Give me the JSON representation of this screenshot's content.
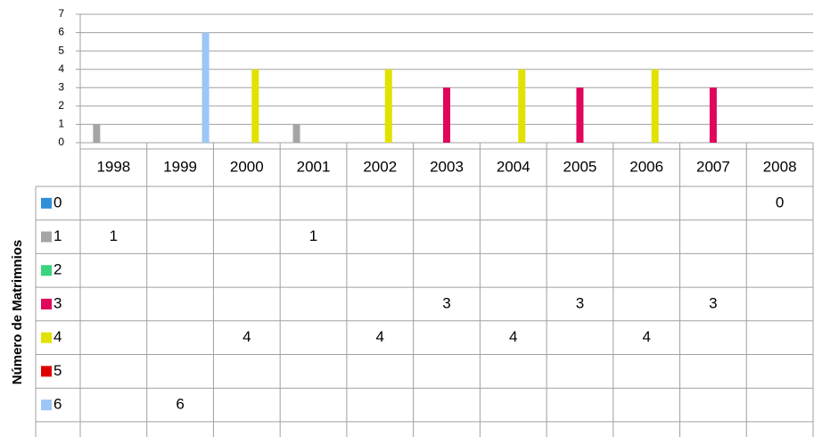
{
  "chart_data": {
    "type": "bar",
    "y_label": "Número de Matrimnios",
    "categories": [
      "1998",
      "1999",
      "2000",
      "2001",
      "2002",
      "2003",
      "2004",
      "2005",
      "2006",
      "2007",
      "2008"
    ],
    "series": [
      {
        "name": "0",
        "color": "#2f8ed8",
        "values": [
          null,
          null,
          null,
          null,
          null,
          null,
          null,
          null,
          null,
          null,
          0
        ]
      },
      {
        "name": "1",
        "color": "#a5a5a5",
        "values": [
          1,
          null,
          null,
          1,
          null,
          null,
          null,
          null,
          null,
          null,
          null
        ]
      },
      {
        "name": "2",
        "color": "#3ad37e",
        "values": [
          null,
          null,
          null,
          null,
          null,
          null,
          null,
          null,
          null,
          null,
          null
        ]
      },
      {
        "name": "3",
        "color": "#e0065c",
        "values": [
          null,
          null,
          null,
          null,
          null,
          3,
          null,
          3,
          null,
          3,
          null
        ]
      },
      {
        "name": "4",
        "color": "#e2e200",
        "values": [
          null,
          null,
          4,
          null,
          4,
          null,
          4,
          null,
          4,
          null,
          null
        ]
      },
      {
        "name": "5",
        "color": "#e00000",
        "values": [
          null,
          null,
          null,
          null,
          null,
          null,
          null,
          null,
          null,
          null,
          null
        ]
      },
      {
        "name": "6",
        "color": "#9cc6f5",
        "values": [
          null,
          6,
          null,
          null,
          null,
          null,
          null,
          null,
          null,
          null,
          null
        ]
      }
    ],
    "ylim": [
      0,
      7
    ],
    "yticks": [
      0,
      1,
      2,
      3,
      4,
      5,
      6,
      7
    ],
    "grid": true,
    "data_table": true
  }
}
